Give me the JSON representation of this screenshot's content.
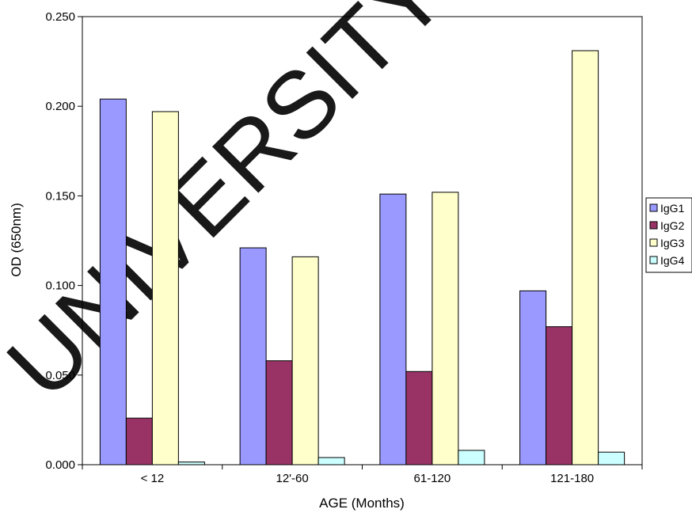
{
  "watermark": "UNIVERSITY OF",
  "chart_data": {
    "type": "bar",
    "title": "",
    "xlabel": "AGE (Months)",
    "ylabel": "OD (650nm)",
    "ylim": [
      0,
      0.25
    ],
    "yticks": [
      "0.000",
      "0.050",
      "0.100",
      "0.150",
      "0.200",
      "0.250"
    ],
    "categories": [
      "< 12",
      "12'-60",
      "61-120",
      "121-180"
    ],
    "series": [
      {
        "name": "IgG1",
        "color": "#9999ff",
        "values": [
          0.204,
          0.121,
          0.151,
          0.097
        ]
      },
      {
        "name": "IgG2",
        "color": "#993366",
        "values": [
          0.026,
          0.058,
          0.052,
          0.077
        ]
      },
      {
        "name": "IgG3",
        "color": "#ffffcc",
        "values": [
          0.197,
          0.116,
          0.152,
          0.231
        ]
      },
      {
        "name": "IgG4",
        "color": "#ccffff",
        "values": [
          0.0015,
          0.004,
          0.008,
          0.007
        ]
      }
    ],
    "legend": "right",
    "grid": false
  }
}
